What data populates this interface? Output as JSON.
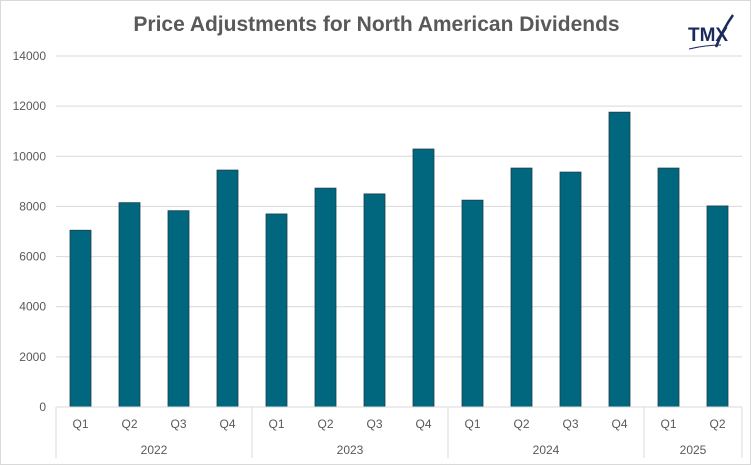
{
  "chart_data": {
    "type": "bar",
    "title": "Price Adjustments for North American Dividends",
    "logo_text": "TMX",
    "categories": [
      "Q1",
      "Q2",
      "Q3",
      "Q4",
      "Q1",
      "Q2",
      "Q3",
      "Q4",
      "Q1",
      "Q2",
      "Q3",
      "Q4",
      "Q1",
      "Q2"
    ],
    "groups": [
      {
        "label": "2022",
        "count": 4
      },
      {
        "label": "2023",
        "count": 4
      },
      {
        "label": "2024",
        "count": 4
      },
      {
        "label": "2025",
        "count": 2
      }
    ],
    "values": [
      7050,
      8150,
      7830,
      9450,
      7700,
      8730,
      8500,
      10290,
      8250,
      9530,
      9370,
      11760,
      9530,
      8020
    ],
    "ylim": [
      0,
      14000
    ],
    "yticks": [
      0,
      2000,
      4000,
      6000,
      8000,
      10000,
      12000,
      14000
    ],
    "grid": true,
    "legend": "none",
    "bar_color": "#00677F",
    "grid_color": "#d9d9d9"
  }
}
